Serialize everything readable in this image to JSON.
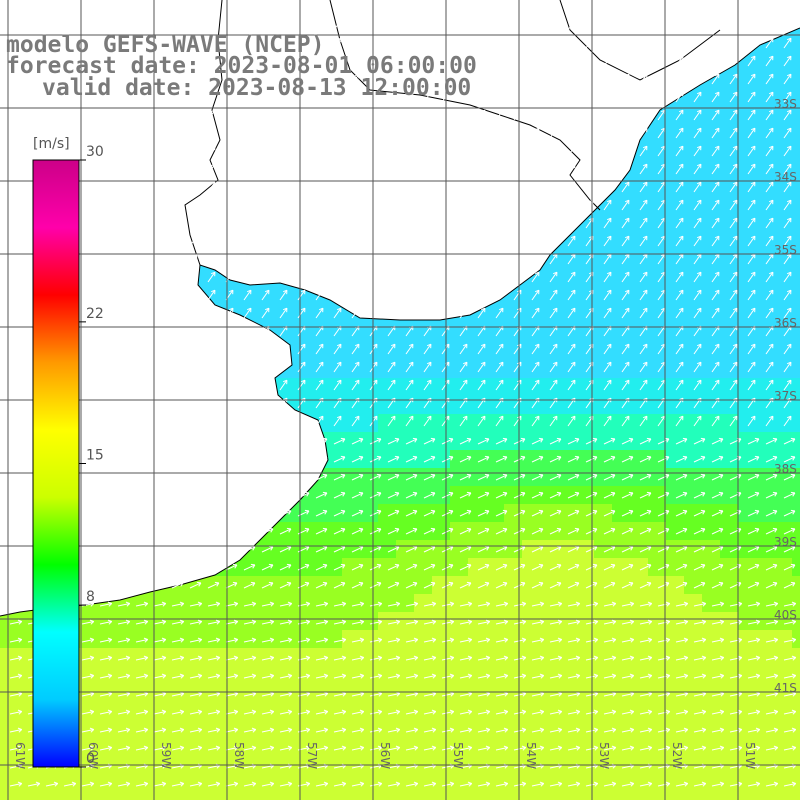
{
  "map": {
    "title": "modelo GEFS-WAVE (NCEP)",
    "forecast_date": "forecast date: 2023-08-01 06:00:00",
    "valid_date": "valid date: 2023-08-13 12:00:00",
    "variable": "wind speed and direction",
    "region": "Uruguay coast / Rio de la Plata / Southwest Atlantic",
    "lon_labels": [
      "61W",
      "60W",
      "59W",
      "58W",
      "57W",
      "56W",
      "55W",
      "54W",
      "53W",
      "52W",
      "51W"
    ],
    "lat_labels": [
      "33S",
      "34S",
      "35S",
      "36S",
      "37S",
      "38S",
      "39S",
      "40S",
      "41S"
    ],
    "grid_color": "#555555",
    "land_color": "#ffffff",
    "coast_color": "#000000",
    "arrow_color": "#ffffff"
  },
  "colorbar": {
    "unit": "[m/s]",
    "ticks": [
      "30",
      "22",
      "15",
      "8",
      "0"
    ],
    "tick_values": [
      30,
      22,
      15,
      8,
      0
    ],
    "range": [
      0,
      30
    ],
    "colors": [
      "#0000ff",
      "#00ccff",
      "#00ffff",
      "#00ff00",
      "#ccff00",
      "#ffff00",
      "#ff9900",
      "#ff0000",
      "#ff00aa",
      "#cc0088"
    ]
  }
}
